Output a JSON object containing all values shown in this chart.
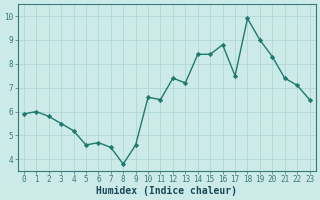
{
  "x": [
    0,
    1,
    2,
    3,
    4,
    5,
    6,
    7,
    8,
    9,
    10,
    11,
    12,
    13,
    14,
    15,
    16,
    17,
    18,
    19,
    20,
    21,
    22,
    23
  ],
  "y": [
    5.9,
    6.0,
    5.8,
    5.5,
    5.2,
    4.6,
    4.7,
    4.5,
    3.8,
    4.6,
    6.6,
    6.5,
    7.4,
    7.2,
    8.4,
    8.4,
    8.8,
    7.5,
    9.9,
    9.0,
    8.3,
    7.4,
    7.1,
    6.5
  ],
  "xlabel": "Humidex (Indice chaleur)",
  "line_color": "#1e7a6e",
  "marker_color": "#1e7a6e",
  "bg_color": "#cceae8",
  "grid_color": "#b0d8d5",
  "xlim": [
    -0.5,
    23.5
  ],
  "ylim": [
    3.5,
    10.5
  ],
  "yticks": [
    4,
    5,
    6,
    7,
    8,
    9,
    10
  ],
  "xticks": [
    0,
    1,
    2,
    3,
    4,
    5,
    6,
    7,
    8,
    9,
    10,
    11,
    12,
    13,
    14,
    15,
    16,
    17,
    18,
    19,
    20,
    21,
    22,
    23
  ],
  "tick_fontsize": 5.5,
  "xlabel_fontsize": 7,
  "label_color": "#1a4a5a",
  "spine_color": "#3a7a7a",
  "linewidth": 1.0,
  "markersize": 2.2
}
